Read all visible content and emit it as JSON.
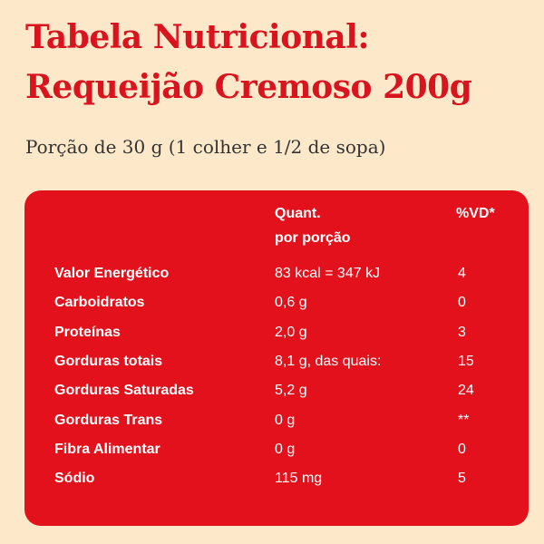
{
  "header": {
    "title_lines": [
      "Tabela Nutricional:",
      "Requeijão Cremoso 200g"
    ],
    "portion": "Porção de 30 g (1 colher e 1/2 de sopa)"
  },
  "table": {
    "columns": {
      "quantity": [
        "Quant.",
        "por porção"
      ],
      "dv": "%VD*"
    },
    "rows": [
      [
        "Valor Energético",
        "83 kcal = 347 kJ",
        "4"
      ],
      [
        "Carboidratos",
        "0,6 g",
        "0"
      ],
      [
        "Proteínas",
        "2,0 g",
        "3"
      ],
      [
        "Gorduras totais",
        "8,1 g, das quais:",
        "15"
      ],
      [
        "Gorduras Saturadas",
        "5,2 g",
        "24"
      ],
      [
        "Gorduras Trans",
        "0 g",
        "**"
      ],
      [
        "Fibra Alimentar",
        "0 g",
        "0"
      ],
      [
        "Sódio",
        "115 mg",
        "5"
      ]
    ]
  }
}
